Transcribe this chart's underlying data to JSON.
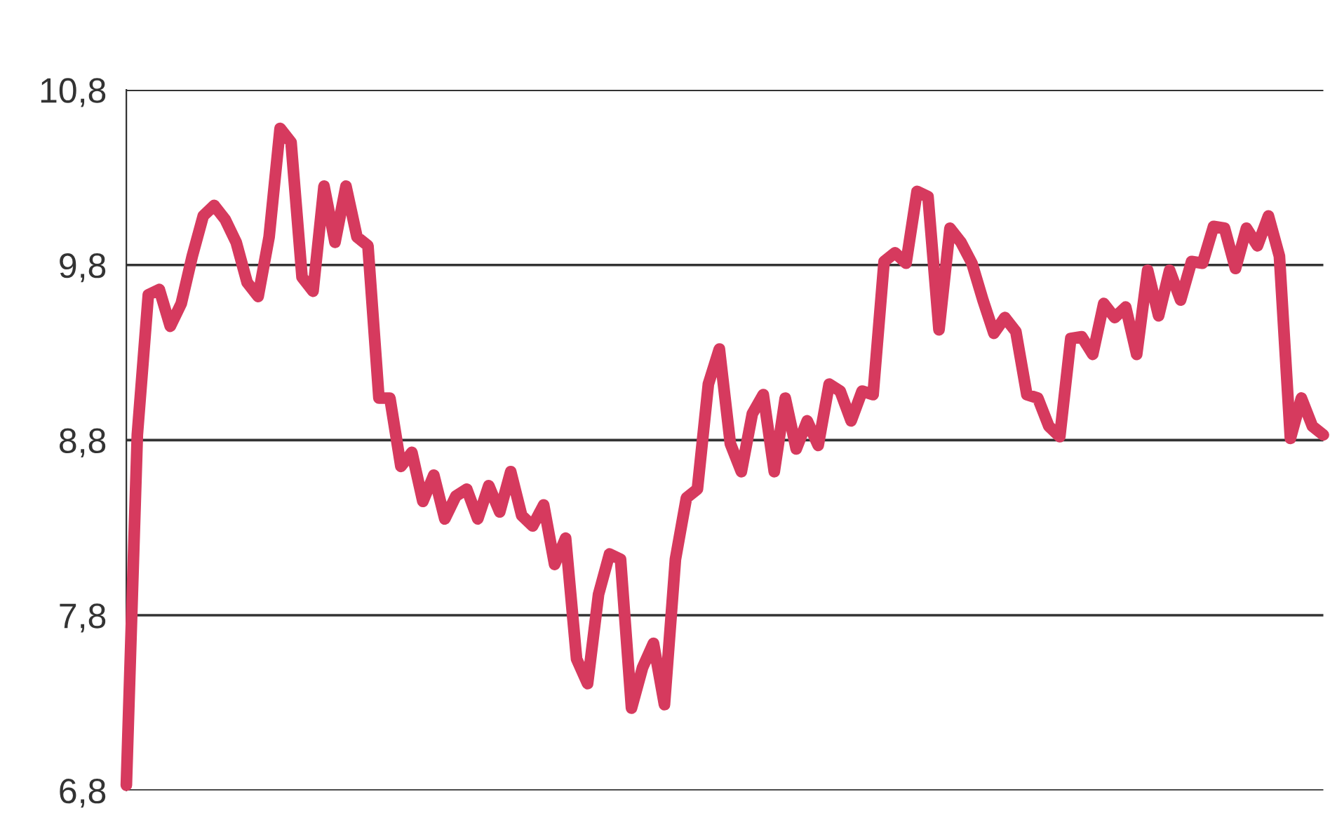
{
  "chart_data": {
    "type": "line",
    "categories": [
      null,
      null,
      null,
      null,
      null,
      null,
      null,
      null,
      null,
      null,
      null,
      null,
      null,
      null,
      null,
      null,
      null,
      null,
      null,
      null,
      null,
      null,
      null,
      null,
      null,
      null,
      null,
      null,
      null,
      null,
      null,
      null,
      null,
      null,
      null,
      null,
      null,
      null,
      null,
      null,
      null,
      null,
      null,
      null,
      null,
      null,
      null,
      null,
      null,
      null,
      null,
      null,
      null,
      null,
      null,
      null,
      null,
      null,
      null,
      null,
      null,
      null,
      null,
      null,
      null,
      null,
      null,
      null,
      null,
      null,
      null,
      null,
      null,
      null,
      null,
      null,
      null,
      null,
      null,
      null,
      null,
      null,
      null,
      null,
      null,
      null,
      null,
      null,
      null,
      null,
      null,
      null,
      null,
      null,
      null,
      null,
      null,
      null,
      null,
      null,
      null,
      null,
      null,
      null,
      null,
      null,
      null,
      null,
      null,
      null
    ],
    "series": [
      {
        "color": "#d63a5e",
        "values": [
          6.83,
          8.83,
          9.63,
          9.66,
          9.45,
          9.58,
          9.85,
          10.08,
          10.14,
          10.06,
          9.93,
          9.7,
          9.62,
          9.96,
          10.58,
          10.5,
          9.73,
          9.65,
          10.25,
          9.93,
          10.25,
          9.96,
          9.91,
          9.04,
          9.04,
          8.65,
          8.73,
          8.45,
          8.6,
          8.35,
          8.48,
          8.52,
          8.35,
          8.54,
          8.39,
          8.62,
          8.37,
          8.31,
          8.43,
          8.09,
          8.24,
          7.55,
          7.41,
          7.92,
          8.15,
          8.12,
          7.27,
          7.5,
          7.64,
          7.29,
          8.12,
          8.47,
          8.52,
          9.12,
          9.32,
          8.78,
          8.62,
          8.95,
          9.06,
          8.62,
          9.04,
          8.75,
          8.91,
          8.77,
          9.12,
          9.08,
          8.91,
          9.08,
          9.06,
          9.82,
          9.87,
          9.81,
          10.22,
          10.19,
          9.43,
          10.01,
          9.93,
          9.81,
          9.6,
          9.41,
          9.5,
          9.42,
          9.06,
          9.04,
          8.88,
          8.82,
          9.38,
          9.39,
          9.29,
          9.58,
          9.5,
          9.56,
          9.29,
          9.77,
          9.51,
          9.77,
          9.6,
          9.82,
          9.81,
          10.02,
          10.01,
          9.78,
          10.01,
          9.91,
          10.08,
          9.85,
          8.81,
          9.04,
          8.88,
          8.83
        ]
      }
    ],
    "ylim": [
      6.8,
      10.8
    ],
    "yticks": [
      {
        "value": 6.8,
        "label": "6,8"
      },
      {
        "value": 7.8,
        "label": "7,8"
      },
      {
        "value": 8.8,
        "label": "8,8"
      },
      {
        "value": 9.8,
        "label": "9,8"
      },
      {
        "value": 10.8,
        "label": "10,8"
      }
    ],
    "grid": "y",
    "tick_labels": "y",
    "marker": "none",
    "line_style": "solid"
  }
}
